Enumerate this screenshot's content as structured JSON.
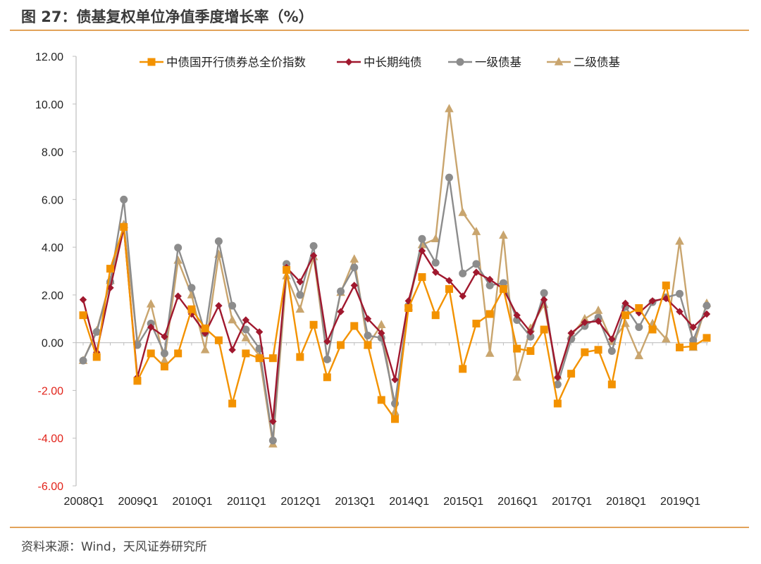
{
  "title": "图 27：债基复权单位净值季度增长率（%）",
  "source": "资料来源：Wind，天风证券研究所",
  "chart_data": {
    "type": "line",
    "title": "图 27：债基复权单位净值季度增长率（%）",
    "ylim": [
      -6,
      12
    ],
    "yticks": [
      "12.00",
      "10.00",
      "8.00",
      "6.00",
      "4.00",
      "2.00",
      "0.00",
      "-2.00",
      "-4.00",
      "-6.00"
    ],
    "ytick_values": [
      12,
      10,
      8,
      6,
      4,
      2,
      0,
      -2,
      -4,
      -6
    ],
    "x_tick_labels": [
      "2008Q1",
      "2009Q1",
      "2010Q1",
      "2011Q1",
      "2012Q1",
      "2013Q1",
      "2014Q1",
      "2015Q1",
      "2016Q1",
      "2017Q1",
      "2018Q1",
      "2019Q1"
    ],
    "legend_position": "top",
    "grid": false,
    "series": [
      {
        "name": "中债国开行债券总全价指数",
        "color": "#f39200",
        "marker": "square",
        "values": [
          1.15,
          -0.6,
          3.1,
          4.85,
          -1.6,
          -0.45,
          -1.0,
          -0.45,
          1.4,
          0.6,
          0.1,
          -2.55,
          -0.45,
          -0.65,
          -0.65,
          3.05,
          -0.6,
          0.75,
          -1.45,
          -0.1,
          0.7,
          -0.1,
          -2.4,
          -3.2,
          1.45,
          2.75,
          1.15,
          2.25,
          -1.1,
          0.8,
          1.2,
          2.25,
          -0.25,
          -0.35,
          0.55,
          -2.55,
          -1.3,
          -0.4,
          -0.3,
          -1.75,
          1.15,
          1.45,
          0.55,
          2.4,
          -0.2,
          -0.15,
          0.2
        ]
      },
      {
        "name": "中长期纯债",
        "color": "#a0182e",
        "marker": "diamond",
        "values": [
          1.8,
          -0.4,
          2.3,
          4.8,
          -1.45,
          0.65,
          0.25,
          1.95,
          1.2,
          0.4,
          1.55,
          -0.3,
          0.95,
          0.45,
          -3.3,
          3.15,
          2.55,
          3.65,
          0.05,
          1.3,
          2.4,
          1.0,
          0.4,
          -1.55,
          1.75,
          3.85,
          2.95,
          2.6,
          1.95,
          2.95,
          2.65,
          2.25,
          1.15,
          0.45,
          1.8,
          -1.45,
          0.4,
          0.85,
          0.9,
          0.15,
          1.65,
          1.25,
          1.75,
          1.85,
          1.3,
          0.65,
          1.2
        ]
      },
      {
        "name": "一级债基",
        "color": "#8c8c8c",
        "marker": "circle",
        "values": [
          -0.75,
          0.45,
          2.55,
          6.0,
          -0.1,
          0.8,
          -0.45,
          3.98,
          2.3,
          0.4,
          4.25,
          1.55,
          0.55,
          -0.25,
          -4.1,
          3.3,
          2.0,
          4.05,
          -0.7,
          2.15,
          3.15,
          0.3,
          0.2,
          -2.55,
          1.55,
          4.35,
          3.35,
          6.92,
          2.9,
          3.3,
          2.4,
          2.5,
          0.95,
          0.25,
          2.08,
          -1.75,
          0.15,
          0.7,
          1.05,
          -0.35,
          1.5,
          0.65,
          1.7,
          1.9,
          2.05,
          0.1,
          1.55
        ]
      },
      {
        "name": "二级债基",
        "color": "#c9a56e",
        "marker": "triangle",
        "values": [
          -0.75,
          0.5,
          2.6,
          4.95,
          0.05,
          1.62,
          -0.75,
          3.45,
          2.0,
          -0.3,
          3.7,
          0.95,
          0.2,
          -0.55,
          -4.25,
          2.8,
          1.4,
          3.6,
          -0.65,
          2.1,
          3.5,
          -0.1,
          0.75,
          -2.9,
          1.5,
          4.1,
          4.35,
          9.8,
          5.45,
          4.65,
          -0.45,
          4.5,
          -1.45,
          0.6,
          1.6,
          -1.4,
          0.3,
          1.0,
          1.35,
          0.05,
          0.8,
          -0.55,
          0.8,
          0.15,
          4.25,
          -0.2,
          1.65
        ]
      }
    ]
  }
}
